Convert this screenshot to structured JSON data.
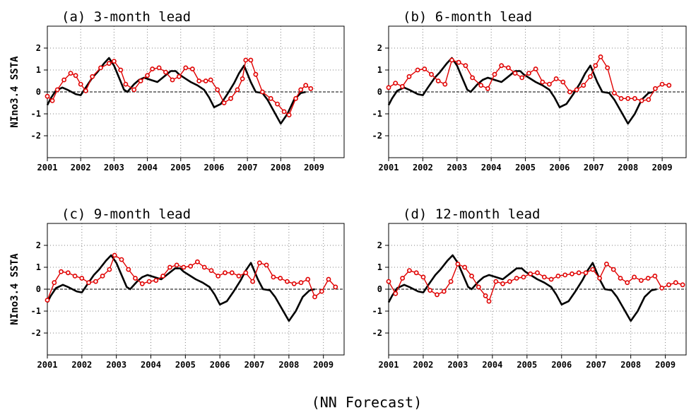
{
  "footer": "(NN Forecast)",
  "colors": {
    "observed": "#000000",
    "forecast": "#e00000",
    "grid": "#808080"
  },
  "chart_data": [
    {
      "type": "line",
      "title": "(a) 3-month lead",
      "ylabel": "NIno3.4 SSTA",
      "xlim": [
        2001.0,
        2009.9
      ],
      "ylim": [
        -3,
        3
      ],
      "x_ticks": [
        2001,
        2002,
        2003,
        2004,
        2005,
        2006,
        2007,
        2008,
        2009
      ],
      "y_ticks": [
        -2,
        -1,
        0,
        1,
        2
      ],
      "grid": "dotted",
      "series": [
        {
          "style": "black-line",
          "x": [
            2001.0,
            2001.1,
            2001.25,
            2001.45,
            2001.6,
            2001.85,
            2002.0,
            2002.15,
            2002.35,
            2002.5,
            2002.7,
            2002.85,
            2003.0,
            2003.15,
            2003.3,
            2003.4,
            2003.6,
            2003.75,
            2003.9,
            2004.1,
            2004.3,
            2004.5,
            2004.7,
            2004.85,
            2004.95,
            2005.15,
            2005.3,
            2005.5,
            2005.7,
            2005.85,
            2006.0,
            2006.2,
            2006.4,
            2006.6,
            2006.75,
            2006.9,
            2007.1,
            2007.25,
            2007.45,
            2007.6,
            2007.8,
            2008.0,
            2008.2,
            2008.4,
            2008.6,
            2008.75
          ],
          "y": [
            -0.6,
            -0.3,
            0.05,
            0.2,
            0.1,
            -0.1,
            -0.15,
            0.2,
            0.65,
            0.9,
            1.3,
            1.55,
            1.2,
            0.65,
            0.1,
            0.0,
            0.35,
            0.55,
            0.65,
            0.55,
            0.45,
            0.7,
            0.95,
            0.95,
            0.8,
            0.6,
            0.45,
            0.3,
            0.1,
            -0.25,
            -0.7,
            -0.55,
            -0.1,
            0.4,
            0.85,
            1.2,
            0.45,
            0.0,
            -0.05,
            -0.35,
            -0.9,
            -1.45,
            -1.0,
            -0.35,
            -0.05,
            0.0
          ]
        },
        {
          "style": "red-markers",
          "x": [
            2001.0,
            2001.15,
            2001.3,
            2001.5,
            2001.7,
            2001.85,
            2002.0,
            2002.15,
            2002.35,
            2002.6,
            2002.85,
            2003.0,
            2003.2,
            2003.35,
            2003.6,
            2003.8,
            2004.0,
            2004.15,
            2004.35,
            2004.55,
            2004.75,
            2004.95,
            2005.15,
            2005.35,
            2005.55,
            2005.75,
            2005.9,
            2006.1,
            2006.3,
            2006.5,
            2006.7,
            2006.85,
            2006.95,
            2007.1,
            2007.25,
            2007.45,
            2007.7,
            2007.9,
            2008.1,
            2008.25,
            2008.45,
            2008.6,
            2008.75,
            2008.9
          ],
          "y": [
            -0.2,
            -0.4,
            0.1,
            0.55,
            0.85,
            0.75,
            0.35,
            0.05,
            0.7,
            1.1,
            1.3,
            1.4,
            1.0,
            0.35,
            0.1,
            0.5,
            0.75,
            1.05,
            1.1,
            0.9,
            0.55,
            0.7,
            1.1,
            1.05,
            0.5,
            0.5,
            0.55,
            0.1,
            -0.5,
            -0.3,
            0.1,
            0.6,
            1.45,
            1.45,
            0.8,
            0.0,
            -0.3,
            -0.55,
            -0.9,
            -1.05,
            -0.3,
            0.1,
            0.3,
            0.15
          ]
        }
      ]
    },
    {
      "type": "line",
      "title": "(b) 6-month lead",
      "xlim": [
        2001.0,
        2009.7
      ],
      "ylim": [
        -3,
        3
      ],
      "x_ticks": [
        2001,
        2002,
        2003,
        2004,
        2005,
        2006,
        2007,
        2008,
        2009
      ],
      "y_ticks": [
        -2,
        -1,
        0,
        1,
        2
      ],
      "grid": "dotted",
      "series": [
        {
          "style": "black-line",
          "x": [
            2001.0,
            2001.1,
            2001.25,
            2001.45,
            2001.6,
            2001.85,
            2002.0,
            2002.15,
            2002.35,
            2002.5,
            2002.7,
            2002.85,
            2003.0,
            2003.15,
            2003.3,
            2003.4,
            2003.6,
            2003.75,
            2003.9,
            2004.1,
            2004.3,
            2004.5,
            2004.7,
            2004.85,
            2004.95,
            2005.15,
            2005.3,
            2005.5,
            2005.7,
            2005.85,
            2006.0,
            2006.2,
            2006.4,
            2006.6,
            2006.75,
            2006.9,
            2007.1,
            2007.25,
            2007.45,
            2007.6,
            2007.8,
            2008.0,
            2008.2,
            2008.4,
            2008.6,
            2008.75
          ],
          "y": [
            -0.6,
            -0.3,
            0.05,
            0.2,
            0.1,
            -0.1,
            -0.15,
            0.2,
            0.65,
            0.9,
            1.3,
            1.55,
            1.2,
            0.65,
            0.1,
            0.0,
            0.35,
            0.55,
            0.65,
            0.55,
            0.45,
            0.7,
            0.95,
            0.95,
            0.8,
            0.6,
            0.45,
            0.3,
            0.1,
            -0.25,
            -0.7,
            -0.55,
            -0.1,
            0.4,
            0.85,
            1.2,
            0.45,
            0.0,
            -0.05,
            -0.35,
            -0.9,
            -1.45,
            -1.0,
            -0.35,
            -0.05,
            0.0
          ]
        },
        {
          "style": "red-markers",
          "x": [
            2001.0,
            2001.2,
            2001.4,
            2001.6,
            2001.85,
            2002.05,
            2002.25,
            2002.45,
            2002.65,
            2002.85,
            2003.05,
            2003.25,
            2003.45,
            2003.7,
            2003.9,
            2004.1,
            2004.3,
            2004.5,
            2004.7,
            2004.9,
            2005.1,
            2005.3,
            2005.5,
            2005.7,
            2005.9,
            2006.1,
            2006.3,
            2006.5,
            2006.7,
            2006.9,
            2007.05,
            2007.2,
            2007.4,
            2007.6,
            2007.8,
            2008.0,
            2008.2,
            2008.4,
            2008.6,
            2008.8,
            2009.0,
            2009.2
          ],
          "y": [
            0.2,
            0.4,
            0.25,
            0.7,
            1.0,
            1.05,
            0.8,
            0.5,
            0.35,
            1.45,
            1.35,
            1.2,
            0.65,
            0.3,
            0.15,
            0.8,
            1.2,
            1.1,
            0.85,
            0.65,
            0.85,
            1.05,
            0.45,
            0.35,
            0.6,
            0.45,
            0.0,
            0.1,
            0.3,
            0.7,
            1.2,
            1.6,
            1.1,
            -0.05,
            -0.3,
            -0.3,
            -0.3,
            -0.4,
            -0.35,
            0.15,
            0.35,
            0.3
          ]
        }
      ]
    },
    {
      "type": "line",
      "title": "(c) 9-month lead",
      "ylabel": "NIno3.4 SSTA",
      "xlim": [
        2001.0,
        2009.6
      ],
      "ylim": [
        -3,
        3
      ],
      "x_ticks": [
        2001,
        2002,
        2003,
        2004,
        2005,
        2006,
        2007,
        2008,
        2009
      ],
      "y_ticks": [
        -2,
        -1,
        0,
        1,
        2
      ],
      "grid": "dotted",
      "series": [
        {
          "style": "black-line",
          "x": [
            2001.0,
            2001.1,
            2001.25,
            2001.45,
            2001.6,
            2001.85,
            2002.0,
            2002.15,
            2002.35,
            2002.5,
            2002.7,
            2002.85,
            2003.0,
            2003.15,
            2003.3,
            2003.4,
            2003.6,
            2003.75,
            2003.9,
            2004.1,
            2004.3,
            2004.5,
            2004.7,
            2004.85,
            2004.95,
            2005.15,
            2005.3,
            2005.5,
            2005.7,
            2005.85,
            2006.0,
            2006.2,
            2006.4,
            2006.6,
            2006.75,
            2006.9,
            2007.1,
            2007.25,
            2007.45,
            2007.6,
            2007.8,
            2008.0,
            2008.2,
            2008.4,
            2008.6,
            2008.75
          ],
          "y": [
            -0.6,
            -0.3,
            0.05,
            0.2,
            0.1,
            -0.1,
            -0.15,
            0.2,
            0.65,
            0.9,
            1.3,
            1.55,
            1.2,
            0.65,
            0.1,
            0.0,
            0.35,
            0.55,
            0.65,
            0.55,
            0.45,
            0.7,
            0.95,
            0.95,
            0.8,
            0.6,
            0.45,
            0.3,
            0.1,
            -0.25,
            -0.7,
            -0.55,
            -0.1,
            0.4,
            0.85,
            1.2,
            0.45,
            0.0,
            -0.05,
            -0.35,
            -0.9,
            -1.45,
            -1.0,
            -0.35,
            -0.05,
            0.0
          ]
        },
        {
          "style": "red-markers",
          "x": [
            2001.0,
            2001.2,
            2001.4,
            2001.6,
            2001.8,
            2002.0,
            2002.2,
            2002.4,
            2002.6,
            2002.8,
            2002.95,
            2003.15,
            2003.35,
            2003.55,
            2003.75,
            2003.95,
            2004.15,
            2004.35,
            2004.55,
            2004.75,
            2004.95,
            2005.15,
            2005.35,
            2005.55,
            2005.75,
            2005.95,
            2006.15,
            2006.35,
            2006.55,
            2006.75,
            2006.95,
            2007.15,
            2007.35,
            2007.55,
            2007.75,
            2007.95,
            2008.15,
            2008.35,
            2008.55,
            2008.75,
            2008.95,
            2009.15,
            2009.35
          ],
          "y": [
            -0.5,
            0.3,
            0.8,
            0.75,
            0.6,
            0.5,
            0.3,
            0.35,
            0.6,
            0.9,
            1.55,
            1.35,
            0.9,
            0.5,
            0.25,
            0.35,
            0.4,
            0.6,
            1.0,
            1.1,
            1.0,
            1.05,
            1.25,
            1.0,
            0.85,
            0.6,
            0.75,
            0.75,
            0.6,
            0.75,
            0.35,
            1.2,
            1.1,
            0.55,
            0.5,
            0.35,
            0.25,
            0.3,
            0.45,
            -0.35,
            -0.1,
            0.45,
            0.1
          ]
        }
      ]
    },
    {
      "type": "line",
      "title": "(d) 12-month lead",
      "xlim": [
        2001.0,
        2009.6
      ],
      "ylim": [
        -3,
        3
      ],
      "x_ticks": [
        2001,
        2002,
        2003,
        2004,
        2005,
        2006,
        2007,
        2008,
        2009
      ],
      "y_ticks": [
        -2,
        -1,
        0,
        1,
        2
      ],
      "grid": "dotted",
      "series": [
        {
          "style": "black-line",
          "x": [
            2001.0,
            2001.1,
            2001.25,
            2001.45,
            2001.6,
            2001.85,
            2002.0,
            2002.15,
            2002.35,
            2002.5,
            2002.7,
            2002.85,
            2003.0,
            2003.15,
            2003.3,
            2003.4,
            2003.6,
            2003.75,
            2003.9,
            2004.1,
            2004.3,
            2004.5,
            2004.7,
            2004.85,
            2004.95,
            2005.15,
            2005.3,
            2005.5,
            2005.7,
            2005.85,
            2006.0,
            2006.2,
            2006.4,
            2006.6,
            2006.75,
            2006.9,
            2007.1,
            2007.25,
            2007.45,
            2007.6,
            2007.8,
            2008.0,
            2008.2,
            2008.4,
            2008.6,
            2008.75
          ],
          "y": [
            -0.6,
            -0.3,
            0.05,
            0.2,
            0.1,
            -0.1,
            -0.15,
            0.2,
            0.65,
            0.9,
            1.3,
            1.55,
            1.2,
            0.65,
            0.1,
            0.0,
            0.35,
            0.55,
            0.65,
            0.55,
            0.45,
            0.7,
            0.95,
            0.95,
            0.8,
            0.6,
            0.45,
            0.3,
            0.1,
            -0.25,
            -0.7,
            -0.55,
            -0.1,
            0.4,
            0.85,
            1.2,
            0.45,
            0.0,
            -0.05,
            -0.35,
            -0.9,
            -1.45,
            -1.0,
            -0.35,
            -0.05,
            0.0
          ]
        },
        {
          "style": "red-markers",
          "x": [
            2001.0,
            2001.2,
            2001.4,
            2001.6,
            2001.8,
            2002.0,
            2002.2,
            2002.4,
            2002.6,
            2002.8,
            2003.0,
            2003.2,
            2003.4,
            2003.6,
            2003.8,
            2003.9,
            2004.1,
            2004.3,
            2004.5,
            2004.7,
            2004.9,
            2005.1,
            2005.3,
            2005.5,
            2005.7,
            2005.9,
            2006.1,
            2006.3,
            2006.5,
            2006.7,
            2006.9,
            2007.1,
            2007.3,
            2007.5,
            2007.7,
            2007.9,
            2008.1,
            2008.3,
            2008.5,
            2008.7,
            2008.9,
            2009.1,
            2009.3,
            2009.5
          ],
          "y": [
            0.35,
            -0.2,
            0.5,
            0.85,
            0.75,
            0.55,
            -0.05,
            -0.25,
            -0.1,
            0.35,
            1.15,
            1.0,
            0.6,
            0.1,
            -0.3,
            -0.55,
            0.35,
            0.25,
            0.35,
            0.5,
            0.55,
            0.7,
            0.75,
            0.55,
            0.45,
            0.6,
            0.65,
            0.7,
            0.75,
            0.75,
            0.9,
            0.5,
            1.15,
            0.9,
            0.5,
            0.3,
            0.55,
            0.4,
            0.5,
            0.6,
            0.05,
            0.2,
            0.3,
            0.2
          ]
        }
      ]
    }
  ]
}
